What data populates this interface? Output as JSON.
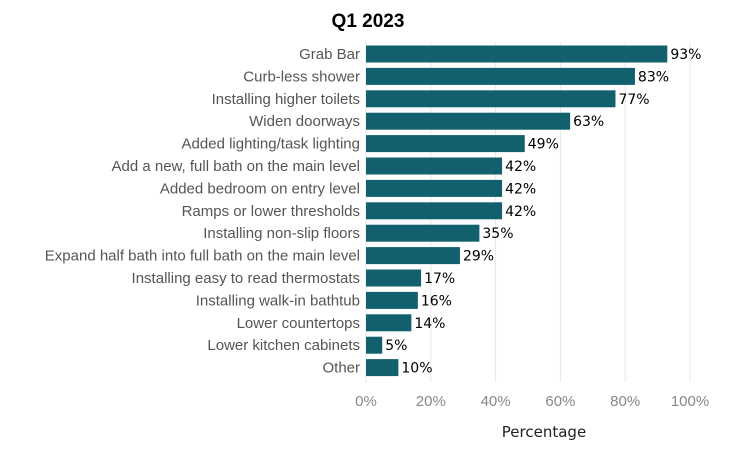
{
  "chart_data": {
    "type": "bar",
    "orientation": "horizontal",
    "title": "Q1 2023",
    "xlabel": "Percentage",
    "ylabel": "",
    "xlim": [
      0,
      100
    ],
    "x_ticks": [
      0,
      20,
      40,
      60,
      80,
      100
    ],
    "x_tick_labels": [
      "0%",
      "20%",
      "40%",
      "60%",
      "80%",
      "100%"
    ],
    "grid": true,
    "legend": "none",
    "categories": [
      "Grab Bar",
      "Curb-less shower",
      "Installing higher toilets",
      "Widen doorways",
      "Added lighting/task lighting",
      "Add a new, full bath on the main level",
      "Added bedroom on entry level",
      "Ramps or lower thresholds",
      "Installing non-slip floors",
      "Expand half bath into full bath on the main level",
      "Installing easy to read thermostats",
      "Installing walk-in bathtub",
      "Lower countertops",
      "Lower kitchen cabinets",
      "Other"
    ],
    "values": [
      93,
      83,
      77,
      63,
      49,
      42,
      42,
      42,
      35,
      29,
      17,
      16,
      14,
      5,
      10
    ],
    "value_labels": [
      "93%",
      "83%",
      "77%",
      "63%",
      "49%",
      "42%",
      "42%",
      "42%",
      "35%",
      "29%",
      "17%",
      "16%",
      "14%",
      "5%",
      "10%"
    ],
    "colors": {
      "bar": "#12606e",
      "grid": "#e8e8e8",
      "category_text": "#555555",
      "tick_text": "#888888",
      "value_text": "#000000",
      "title_text": "#000000"
    }
  }
}
